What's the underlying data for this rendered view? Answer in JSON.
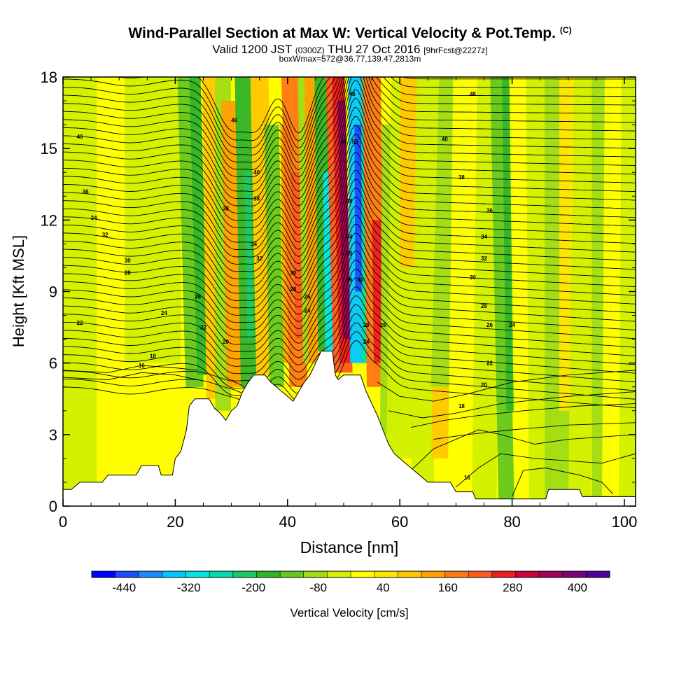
{
  "title": {
    "main": "Wind-Parallel Section at Max W: Vertical Velocity & Pot.Temp.",
    "copyright": "(C)",
    "valid_prefix": "Valid 1200 JST",
    "utc": "(0300Z)",
    "valid_date": "THU 27 Oct 2016",
    "forecast": "[9hrFcst@2227z]",
    "box_info": "boxWmax=572@36.77,139.47,2813m"
  },
  "chart_data": {
    "type": "heatmap",
    "xlabel": "Distance [nm]",
    "ylabel": "Height [Kft MSL]",
    "xlim": [
      0,
      102
    ],
    "ylim": [
      0,
      18
    ],
    "x_ticks": [
      "0",
      "20",
      "40",
      "60",
      "80",
      "100"
    ],
    "x_tick_values": [
      0,
      20,
      40,
      60,
      80,
      100
    ],
    "y_ticks": [
      "0",
      "3",
      "6",
      "9",
      "12",
      "15",
      "18"
    ],
    "y_tick_values": [
      0,
      3,
      6,
      9,
      12,
      15,
      18
    ],
    "colorbar": {
      "label": "Vertical Velocity [cm/s]",
      "tick_labels": [
        "-440",
        "-320",
        "-200",
        "-80",
        "40",
        "160",
        "280",
        "400"
      ],
      "tick_values": [
        -440,
        -320,
        -200,
        -80,
        40,
        160,
        280,
        400
      ],
      "colors": [
        "#0000ff",
        "#1a4cff",
        "#1a8cff",
        "#00c8ff",
        "#00e6e6",
        "#00dcaa",
        "#1ec864",
        "#32b428",
        "#64c81e",
        "#a0dc14",
        "#d2f000",
        "#ffff00",
        "#ffe600",
        "#ffc800",
        "#ffa000",
        "#ff7814",
        "#ff5a1e",
        "#f01e1e",
        "#c8003c",
        "#a0005a",
        "#780078",
        "#500096"
      ]
    },
    "terrain_top_kft": [
      [
        0,
        0.7
      ],
      [
        1.5,
        0.7
      ],
      [
        3,
        1.0
      ],
      [
        7,
        1.0
      ],
      [
        8,
        1.3
      ],
      [
        13,
        1.3
      ],
      [
        14,
        1.7
      ],
      [
        17,
        1.7
      ],
      [
        17.5,
        1.3
      ],
      [
        19.5,
        1.3
      ],
      [
        20,
        2.0
      ],
      [
        21,
        2.3
      ],
      [
        22,
        3.2
      ],
      [
        22.5,
        4.2
      ],
      [
        23.5,
        4.5
      ],
      [
        26,
        4.5
      ],
      [
        27,
        4.1
      ],
      [
        28,
        3.9
      ],
      [
        29,
        3.6
      ],
      [
        30,
        4.0
      ],
      [
        31,
        4.2
      ],
      [
        32,
        4.8
      ],
      [
        33,
        5.2
      ],
      [
        34,
        5.5
      ],
      [
        36,
        5.5
      ],
      [
        37,
        5.2
      ],
      [
        38,
        5.0
      ],
      [
        39,
        4.8
      ],
      [
        40,
        4.6
      ],
      [
        41,
        4.4
      ],
      [
        42,
        4.8
      ],
      [
        43,
        5.2
      ],
      [
        44,
        5.5
      ],
      [
        45,
        6.0
      ],
      [
        46,
        6.5
      ],
      [
        48,
        6.5
      ],
      [
        48.5,
        5.5
      ],
      [
        49,
        5.3
      ],
      [
        50,
        5.5
      ],
      [
        53,
        5.5
      ],
      [
        54,
        4.8
      ],
      [
        55,
        4.3
      ],
      [
        56,
        3.8
      ],
      [
        57,
        3.2
      ],
      [
        58,
        2.6
      ],
      [
        59,
        2.2
      ],
      [
        60,
        2.0
      ],
      [
        61,
        1.8
      ],
      [
        62,
        1.6
      ],
      [
        63,
        1.4
      ],
      [
        64,
        1.2
      ],
      [
        65,
        1.0
      ],
      [
        69,
        1.0
      ],
      [
        70,
        0.6
      ],
      [
        73,
        0.6
      ],
      [
        73.5,
        0.3
      ],
      [
        86,
        0.3
      ],
      [
        86.5,
        0.7
      ],
      [
        92,
        0.7
      ],
      [
        92.5,
        0.4
      ],
      [
        102,
        0.4
      ]
    ],
    "contour_labels": [
      {
        "x": 3,
        "y": 15.5,
        "t": "40"
      },
      {
        "x": 4,
        "y": 13.2,
        "t": "36"
      },
      {
        "x": 5.5,
        "y": 12.1,
        "t": "34"
      },
      {
        "x": 7.5,
        "y": 11.4,
        "t": "32"
      },
      {
        "x": 11.5,
        "y": 10.3,
        "t": "30"
      },
      {
        "x": 11.5,
        "y": 9.8,
        "t": "28"
      },
      {
        "x": 3,
        "y": 7.7,
        "t": "22"
      },
      {
        "x": 18,
        "y": 8.1,
        "t": "24"
      },
      {
        "x": 16,
        "y": 6.3,
        "t": "18"
      },
      {
        "x": 14,
        "y": 5.9,
        "t": "16"
      },
      {
        "x": 24,
        "y": 8.8,
        "t": "26"
      },
      {
        "x": 25,
        "y": 7.5,
        "t": "22"
      },
      {
        "x": 29,
        "y": 6.9,
        "t": "20"
      },
      {
        "x": 29,
        "y": 12.5,
        "t": "38"
      },
      {
        "x": 30.5,
        "y": 16.2,
        "t": "46"
      },
      {
        "x": 34.5,
        "y": 14.0,
        "t": "40"
      },
      {
        "x": 34.5,
        "y": 12.9,
        "t": "38"
      },
      {
        "x": 34,
        "y": 11.0,
        "t": "34"
      },
      {
        "x": 35,
        "y": 10.4,
        "t": "32"
      },
      {
        "x": 41,
        "y": 9.8,
        "t": "30"
      },
      {
        "x": 41,
        "y": 9.1,
        "t": "28"
      },
      {
        "x": 43.5,
        "y": 8.8,
        "t": "26"
      },
      {
        "x": 43.5,
        "y": 8.2,
        "t": "24"
      },
      {
        "x": 50,
        "y": 15.3,
        "t": "44"
      },
      {
        "x": 51.5,
        "y": 17.3,
        "t": "48"
      },
      {
        "x": 52,
        "y": 15.3,
        "t": "50"
      },
      {
        "x": 51,
        "y": 12.8,
        "t": "48"
      },
      {
        "x": 51,
        "y": 11.3,
        "t": "54"
      },
      {
        "x": 51,
        "y": 10.6,
        "t": "50"
      },
      {
        "x": 51,
        "y": 9.5,
        "t": "36"
      },
      {
        "x": 53,
        "y": 9.5,
        "t": "40"
      },
      {
        "x": 54,
        "y": 7.6,
        "t": "28"
      },
      {
        "x": 54,
        "y": 6.9,
        "t": "24"
      },
      {
        "x": 57,
        "y": 7.6,
        "t": "26"
      },
      {
        "x": 73,
        "y": 17.3,
        "t": "48"
      },
      {
        "x": 68,
        "y": 15.4,
        "t": "40"
      },
      {
        "x": 71,
        "y": 13.8,
        "t": "38"
      },
      {
        "x": 76,
        "y": 12.4,
        "t": "36"
      },
      {
        "x": 75,
        "y": 11.3,
        "t": "34"
      },
      {
        "x": 75,
        "y": 10.4,
        "t": "32"
      },
      {
        "x": 73,
        "y": 9.6,
        "t": "30"
      },
      {
        "x": 75,
        "y": 8.4,
        "t": "28"
      },
      {
        "x": 76,
        "y": 7.6,
        "t": "26"
      },
      {
        "x": 80,
        "y": 7.6,
        "t": "24"
      },
      {
        "x": 76,
        "y": 6.0,
        "t": "22"
      },
      {
        "x": 75,
        "y": 5.1,
        "t": "20"
      },
      {
        "x": 71,
        "y": 4.2,
        "t": "18"
      },
      {
        "x": 72,
        "y": 1.2,
        "t": "16"
      }
    ]
  }
}
